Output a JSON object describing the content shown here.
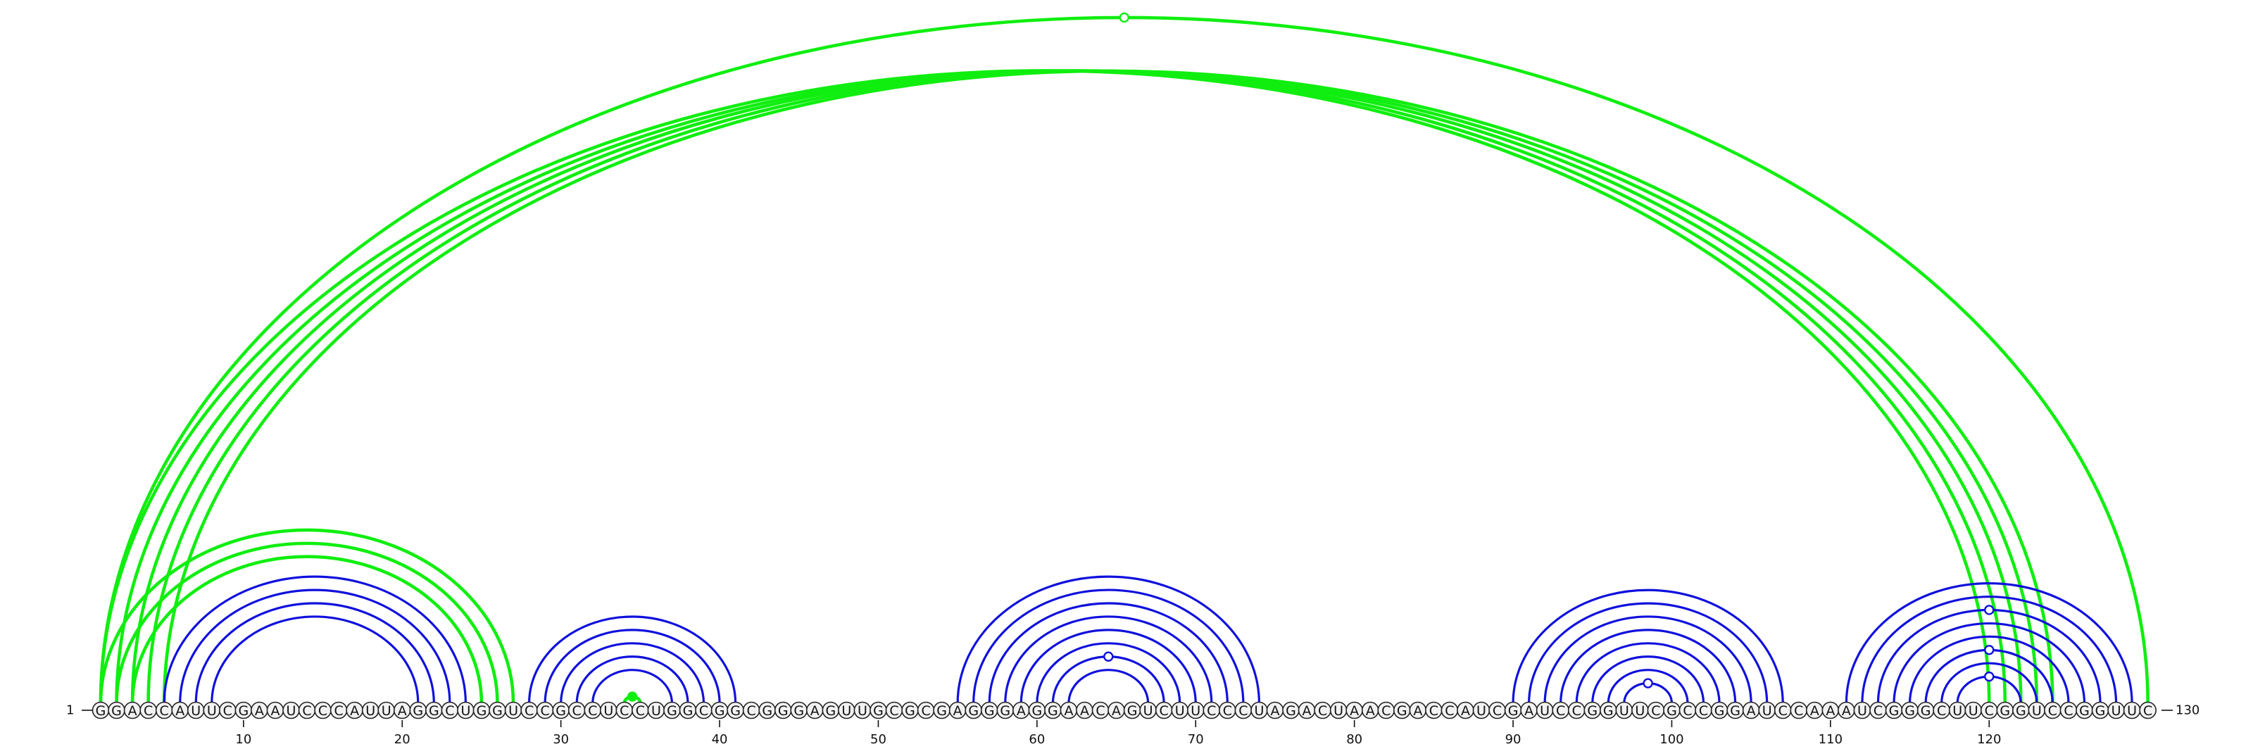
{
  "sequence": "GGACCAUUCGAAUCCCAUUAGGCUGGUCCGCCUCCUGGCGGCGGGAGUUGCGCGAGGGAGGAACAGUCUUCCCUAGACUAACGACCAUCGAUCCGGUUCGCCGGAUCCAAAUCGGGCUUCGGUCCGGUUC",
  "start_label": "1",
  "end_label": "130",
  "ticks": [
    {
      "pos": 10,
      "label": "10"
    },
    {
      "pos": 20,
      "label": "20"
    },
    {
      "pos": 30,
      "label": "30"
    },
    {
      "pos": 40,
      "label": "40"
    },
    {
      "pos": 50,
      "label": "50"
    },
    {
      "pos": 60,
      "label": "60"
    },
    {
      "pos": 70,
      "label": "70"
    },
    {
      "pos": 80,
      "label": "80"
    },
    {
      "pos": 90,
      "label": "90"
    },
    {
      "pos": 100,
      "label": "100"
    },
    {
      "pos": 110,
      "label": "110"
    },
    {
      "pos": 120,
      "label": "120"
    }
  ],
  "colors": {
    "secondary_pair": "#1010dd",
    "tertiary_pair": "#10ee10",
    "nucleotide_fill": "#f2f2f2",
    "outline": "#222222"
  },
  "pairs": [
    {
      "i": 5,
      "j": 24,
      "type": "secondary"
    },
    {
      "i": 6,
      "j": 23,
      "type": "secondary"
    },
    {
      "i": 7,
      "j": 22,
      "type": "secondary"
    },
    {
      "i": 8,
      "j": 21,
      "type": "secondary"
    },
    {
      "i": 3,
      "j": 25,
      "type": "tertiary"
    },
    {
      "i": 2,
      "j": 26,
      "type": "tertiary"
    },
    {
      "i": 1,
      "j": 27,
      "type": "tertiary"
    },
    {
      "i": 28,
      "j": 41,
      "type": "secondary"
    },
    {
      "i": 29,
      "j": 40,
      "type": "secondary"
    },
    {
      "i": 30,
      "j": 39,
      "type": "secondary"
    },
    {
      "i": 31,
      "j": 38,
      "type": "secondary"
    },
    {
      "i": 32,
      "j": 37,
      "type": "secondary"
    },
    {
      "i": 34,
      "j": 35,
      "type": "tertiary",
      "marker": "filled"
    },
    {
      "i": 55,
      "j": 74,
      "type": "secondary"
    },
    {
      "i": 56,
      "j": 73,
      "type": "secondary"
    },
    {
      "i": 57,
      "j": 72,
      "type": "secondary"
    },
    {
      "i": 58,
      "j": 71,
      "type": "secondary"
    },
    {
      "i": 59,
      "j": 70,
      "type": "secondary"
    },
    {
      "i": 60,
      "j": 69,
      "type": "secondary"
    },
    {
      "i": 61,
      "j": 68,
      "type": "secondary",
      "marker": "open"
    },
    {
      "i": 62,
      "j": 67,
      "type": "secondary"
    },
    {
      "i": 90,
      "j": 107,
      "type": "secondary"
    },
    {
      "i": 91,
      "j": 106,
      "type": "secondary"
    },
    {
      "i": 92,
      "j": 105,
      "type": "secondary"
    },
    {
      "i": 93,
      "j": 104,
      "type": "secondary"
    },
    {
      "i": 94,
      "j": 103,
      "type": "secondary"
    },
    {
      "i": 95,
      "j": 102,
      "type": "secondary"
    },
    {
      "i": 96,
      "j": 101,
      "type": "secondary"
    },
    {
      "i": 97,
      "j": 100,
      "type": "secondary",
      "marker": "open"
    },
    {
      "i": 111,
      "j": 129,
      "type": "secondary"
    },
    {
      "i": 112,
      "j": 128,
      "type": "secondary"
    },
    {
      "i": 113,
      "j": 127,
      "type": "secondary",
      "marker": "open"
    },
    {
      "i": 114,
      "j": 126,
      "type": "secondary"
    },
    {
      "i": 115,
      "j": 125,
      "type": "secondary"
    },
    {
      "i": 116,
      "j": 124,
      "type": "secondary",
      "marker": "open"
    },
    {
      "i": 117,
      "j": 123,
      "type": "secondary"
    },
    {
      "i": 118,
      "j": 122,
      "type": "secondary",
      "marker": "open"
    },
    {
      "i": 1,
      "j": 120,
      "type": "tertiary"
    },
    {
      "i": 2,
      "j": 121,
      "type": "tertiary"
    },
    {
      "i": 3,
      "j": 122,
      "type": "tertiary"
    },
    {
      "i": 4,
      "j": 123,
      "type": "tertiary"
    },
    {
      "i": 5,
      "j": 124,
      "type": "tertiary"
    },
    {
      "i": 1,
      "j": 130,
      "type": "tertiary",
      "marker": "open"
    }
  ]
}
